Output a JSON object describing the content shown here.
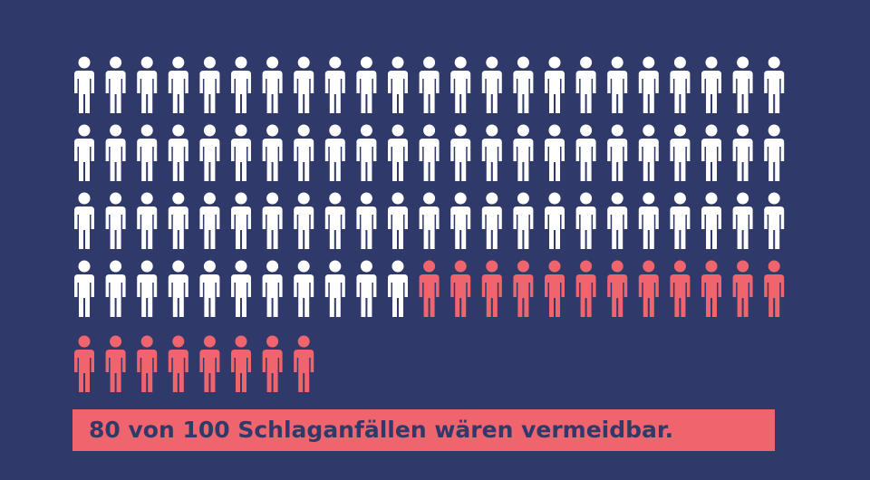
{
  "chart_data": {
    "type": "pictogram",
    "caption": "80 von 100 Schlaganfällen wären vermeidbar.",
    "values": [
      80,
      20
    ],
    "colors": [
      "#ffffff",
      "#f0646e"
    ]
  }
}
